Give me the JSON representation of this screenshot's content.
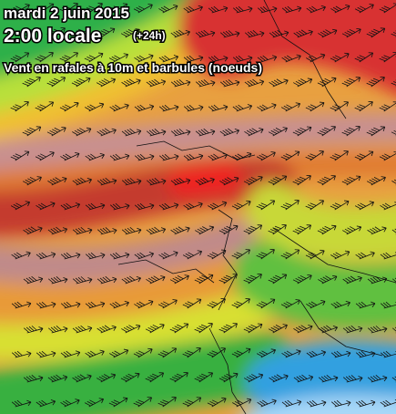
{
  "header": {
    "date": "mardi 2 juin 2015",
    "time": "2:00 locale",
    "offset": "(+24h)",
    "subtitle": "Vent en rafales à 10m et barbules (noeuds)"
  }
}
